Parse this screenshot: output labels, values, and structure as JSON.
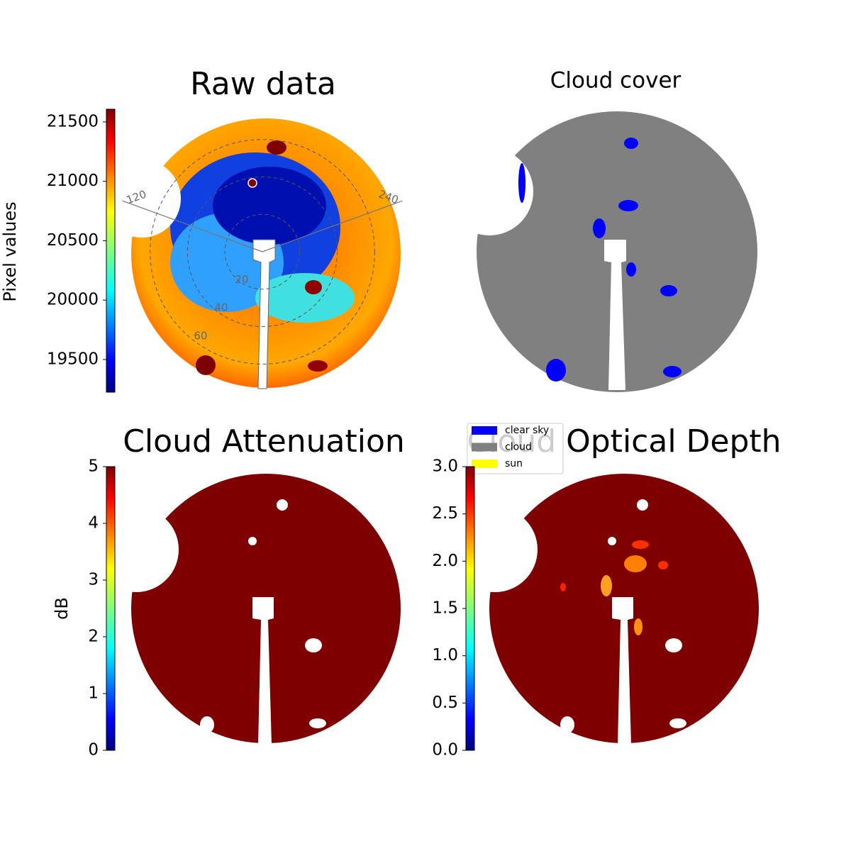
{
  "chart_data": [
    {
      "type": "image",
      "title": "Raw data",
      "colorbar_label": "Pixel values",
      "cmap": "jet",
      "clim": [
        19225,
        21607
      ],
      "cticks": [
        19500,
        20000,
        20500,
        21000,
        21500
      ],
      "rlim": [
        0,
        72
      ],
      "rticks": [
        20,
        40,
        60
      ],
      "angle_ticks": [
        120,
        240
      ]
    },
    {
      "type": "image",
      "title": "Cloud cover",
      "legend": {
        "labels": [
          "clear sky",
          "cloud",
          "sun"
        ],
        "colors": [
          "#0000ff",
          "#808080",
          "#ffff00"
        ]
      }
    },
    {
      "type": "image",
      "title": "Cloud Attenuation",
      "colorbar_label": "dB",
      "cmap": "jet",
      "clim": [
        0,
        5
      ],
      "cticks": [
        0,
        1,
        2,
        3,
        4,
        5
      ]
    },
    {
      "type": "image",
      "title": "Cloud Optical Depth",
      "cmap": "jet",
      "clim": [
        0,
        3
      ],
      "cticks": [
        {
          "value": 0,
          "label": "0.0"
        },
        {
          "value": 0.5,
          "label": "0.5"
        },
        {
          "value": 1,
          "label": "1.0"
        },
        {
          "value": 1.5,
          "label": "1.5"
        },
        {
          "value": 2,
          "label": "2.0"
        },
        {
          "value": 2.5,
          "label": "2.5"
        },
        {
          "value": 3,
          "label": "3.0"
        }
      ]
    }
  ]
}
